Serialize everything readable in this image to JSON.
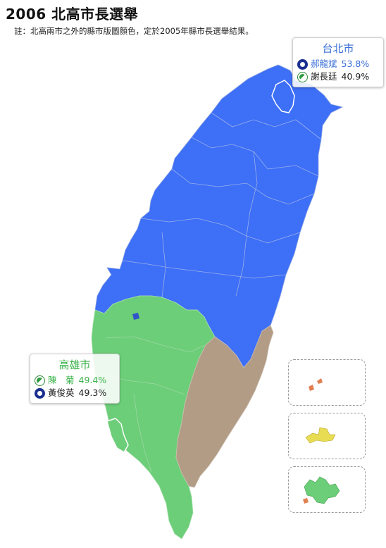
{
  "title": "2006 北高市長選舉",
  "note": "註：北高兩市之外的縣市版圖顏色，定於2005年縣市長選舉結果。",
  "colors": {
    "kmt": "#3d6ff7",
    "dpp": "#6cce78",
    "independent": "#b29c86",
    "penghu": "#e8dc52",
    "kinmen": "#e08050"
  },
  "taipei": {
    "city": "台北市",
    "candidates": [
      {
        "name": "郝龍斌",
        "pct": "53.8%",
        "party_icon": "kmt-emblem-icon"
      },
      {
        "name": "謝長廷",
        "pct": "40.9%",
        "party_icon": "dpp-emblem-icon"
      }
    ]
  },
  "kaohsiung": {
    "city": "高雄市",
    "candidates": [
      {
        "name": "陳　菊",
        "pct": "49.4%",
        "party_icon": "dpp-emblem-icon"
      },
      {
        "name": "黃俊英",
        "pct": "49.3%",
        "party_icon": "kmt-emblem-icon"
      }
    ]
  }
}
